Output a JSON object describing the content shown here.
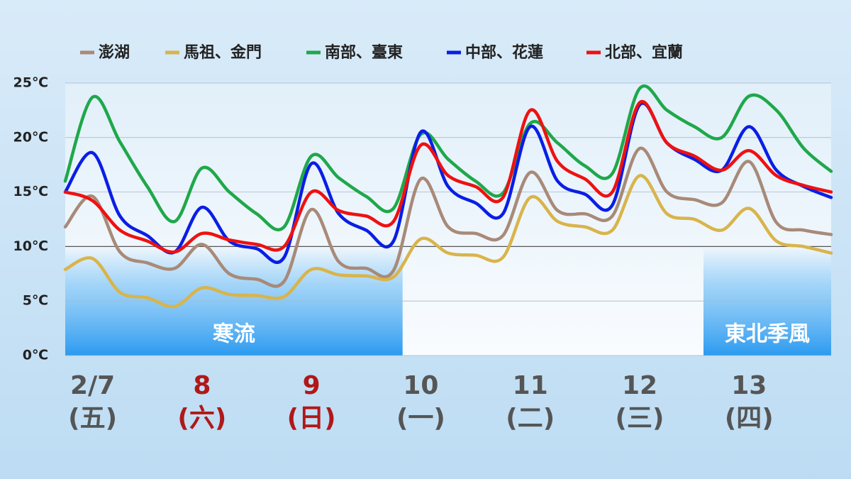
{
  "chart_data": {
    "type": "line",
    "xlim": [
      0,
      168
    ],
    "ylim": [
      0,
      25
    ],
    "yticks": [
      {
        "value": 0,
        "label": "0℃"
      },
      {
        "value": 5,
        "label": "5℃"
      },
      {
        "value": 10,
        "label": "10℃"
      },
      {
        "value": 15,
        "label": "15℃"
      },
      {
        "value": 20,
        "label": "20℃"
      },
      {
        "value": 25,
        "label": "25℃"
      }
    ],
    "xticks": [
      {
        "value": 6,
        "label": "2/7",
        "sublabel": "(五)",
        "color": "#555555"
      },
      {
        "value": 30,
        "label": "8",
        "sublabel": "(六)",
        "color": "#b01818"
      },
      {
        "value": 54,
        "label": "9",
        "sublabel": "(日)",
        "color": "#b01818"
      },
      {
        "value": 78,
        "label": "10",
        "sublabel": "(一)",
        "color": "#555555"
      },
      {
        "value": 102,
        "label": "11",
        "sublabel": "(二)",
        "color": "#555555"
      },
      {
        "value": 126,
        "label": "12",
        "sublabel": "(三)",
        "color": "#555555"
      },
      {
        "value": 150,
        "label": "13",
        "sublabel": "(四)",
        "color": "#555555"
      }
    ],
    "grid": true,
    "x": [
      0,
      6,
      12,
      18,
      24,
      30,
      36,
      42,
      48,
      54,
      60,
      66,
      72,
      78,
      84,
      90,
      96,
      102,
      108,
      114,
      120,
      126,
      132,
      138,
      144,
      150,
      156,
      162,
      168
    ],
    "series": [
      {
        "name": "澎湖",
        "color": "#a88a78",
        "values": [
          11.8,
          14.6,
          9.5,
          8.5,
          8.0,
          10.2,
          7.5,
          7.0,
          6.8,
          13.4,
          8.6,
          8.0,
          7.8,
          16.2,
          11.8,
          11.2,
          11.0,
          16.8,
          13.3,
          13.0,
          12.8,
          19.0,
          15.0,
          14.3,
          14.0,
          17.8,
          12.2,
          11.5,
          11.1
        ]
      },
      {
        "name": "馬祖、金門",
        "color": "#d9b44a",
        "values": [
          7.9,
          8.9,
          5.8,
          5.3,
          4.5,
          6.2,
          5.6,
          5.5,
          5.4,
          7.9,
          7.4,
          7.3,
          7.2,
          10.7,
          9.4,
          9.2,
          9.0,
          14.5,
          12.3,
          11.8,
          11.5,
          16.5,
          13.0,
          12.5,
          11.5,
          13.5,
          10.5,
          10.0,
          9.4
        ]
      },
      {
        "name": "南部、臺東",
        "color": "#1fa84a",
        "values": [
          16.0,
          23.7,
          19.6,
          15.5,
          12.3,
          17.2,
          15.0,
          13.0,
          11.8,
          18.3,
          16.3,
          14.6,
          13.5,
          20.3,
          18.0,
          16.0,
          14.9,
          21.3,
          19.5,
          17.4,
          16.7,
          24.5,
          22.5,
          21.0,
          20.0,
          23.8,
          22.5,
          19.0,
          16.9
        ]
      },
      {
        "name": "中部、花蓮",
        "color": "#0a1ee6",
        "values": [
          15.0,
          18.6,
          12.8,
          11.0,
          9.5,
          13.6,
          10.5,
          9.8,
          9.0,
          17.6,
          13.0,
          11.5,
          10.5,
          20.5,
          15.5,
          14.0,
          13.0,
          21.0,
          16.0,
          14.8,
          13.8,
          23.0,
          19.5,
          18.0,
          17.0,
          21.0,
          17.0,
          15.5,
          14.5
        ]
      },
      {
        "name": "北部、宜蘭",
        "color": "#ee1111",
        "values": [
          15.0,
          14.2,
          11.5,
          10.5,
          9.5,
          11.2,
          10.6,
          10.2,
          10.0,
          15.0,
          13.3,
          12.8,
          12.3,
          19.3,
          16.5,
          15.5,
          14.5,
          22.5,
          17.8,
          16.2,
          15.0,
          23.2,
          19.5,
          18.3,
          17.0,
          18.8,
          16.5,
          15.6,
          15.0
        ]
      }
    ],
    "annotations": [
      {
        "label": "寒流",
        "x": [
          0,
          74
        ]
      },
      {
        "label": "東北季風",
        "x": [
          140,
          168
        ]
      }
    ]
  }
}
